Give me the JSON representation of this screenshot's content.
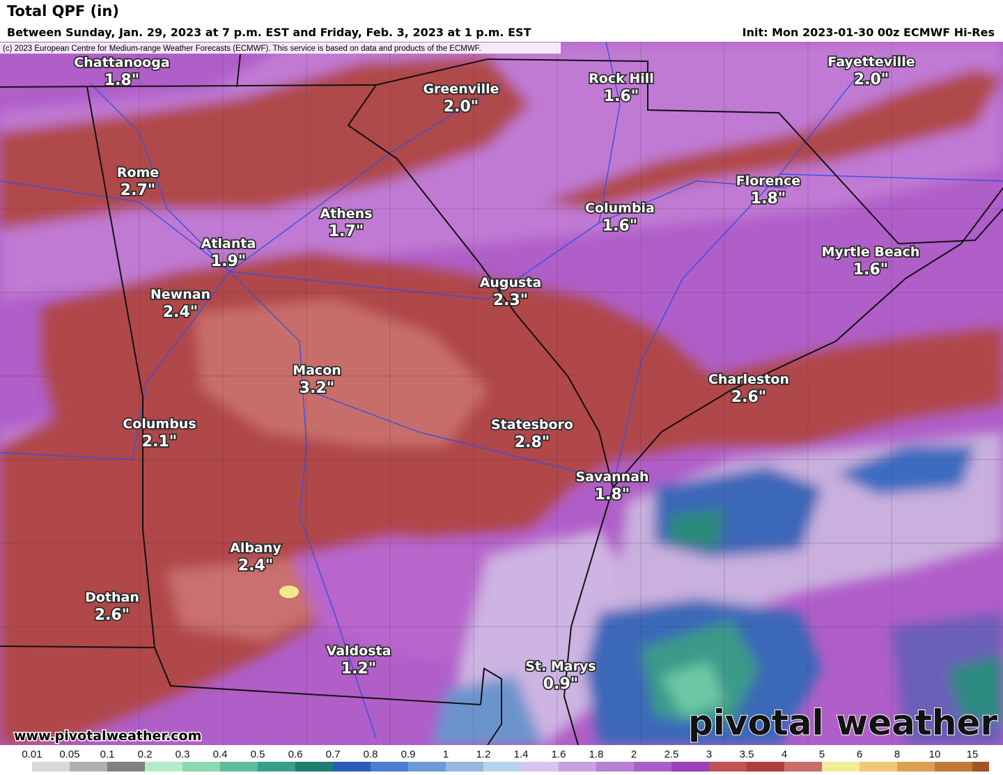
{
  "header": {
    "title": "Total QPF (in)",
    "subtitle": "Between Sunday, Jan. 29, 2023 at 7 p.m. EST and Friday, Feb. 3, 2023 at 1 p.m. EST",
    "init": "Init: Mon 2023-01-30 00z ECMWF Hi-Res"
  },
  "copyright": "(c) 2023 European Centre for Medium-range Weather Forecasts (ECMWF). This service is based on data and products of the ECMWF.",
  "cities": [
    {
      "name": "Chattanooga",
      "value": "1.8\""
    },
    {
      "name": "Greenville",
      "value": "2.0\""
    },
    {
      "name": "Rock Hill",
      "value": "1.6\""
    },
    {
      "name": "Fayetteville",
      "value": "2.0\""
    },
    {
      "name": "Rome",
      "value": "2.7\""
    },
    {
      "name": "Athens",
      "value": "1.7\""
    },
    {
      "name": "Columbia",
      "value": "1.6\""
    },
    {
      "name": "Florence",
      "value": "1.8\""
    },
    {
      "name": "Atlanta",
      "value": "1.9\""
    },
    {
      "name": "Myrtle Beach",
      "value": "1.6\""
    },
    {
      "name": "Augusta",
      "value": "2.3\""
    },
    {
      "name": "Newnan",
      "value": "2.4\""
    },
    {
      "name": "Macon",
      "value": "3.2\""
    },
    {
      "name": "Charleston",
      "value": "2.6\""
    },
    {
      "name": "Columbus",
      "value": "2.1\""
    },
    {
      "name": "Statesboro",
      "value": "2.8\""
    },
    {
      "name": "Savannah",
      "value": "1.8\""
    },
    {
      "name": "Albany",
      "value": "2.4\""
    },
    {
      "name": "Dothan",
      "value": "2.6\""
    },
    {
      "name": "Valdosta",
      "value": "1.2\""
    },
    {
      "name": "St. Marys",
      "value": "0.9\""
    }
  ],
  "watermark": "pivotal weather",
  "url": "www.pivotalweather.com",
  "colorbar": {
    "labels": [
      "0.01",
      "0.05",
      "0.1",
      "0.2",
      "0.3",
      "0.4",
      "0.5",
      "0.6",
      "0.7",
      "0.8",
      "0.9",
      "1",
      "1.2",
      "1.4",
      "1.6",
      "1.8",
      "2",
      "2.5",
      "3",
      "3.5",
      "4",
      "5",
      "6",
      "8",
      "10",
      "15"
    ]
  }
}
